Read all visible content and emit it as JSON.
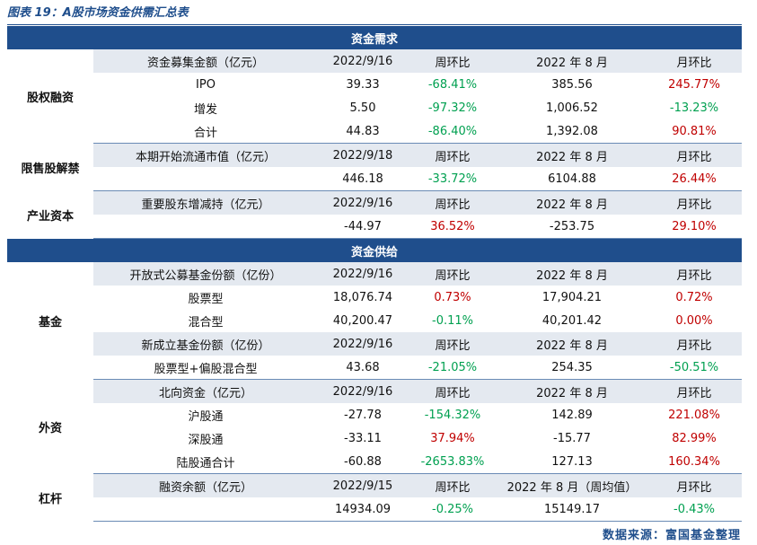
{
  "caption": "图表 19：A股市场资金供需汇总表",
  "source": "数据来源：富国基金整理",
  "colors": {
    "header_blue": "#1f4e8c",
    "subheader_gray": "#e4e9f0",
    "up_red": "#c00000",
    "down_green": "#00a050"
  },
  "sections": [
    {
      "title": "资金需求",
      "groups": [
        {
          "name": "股权融资",
          "rows": [
            {
              "type": "header",
              "cells": [
                "资金募集金额（亿元）",
                "2022/9/16",
                "周环比",
                "2022 年 8 月",
                "月环比"
              ]
            },
            {
              "type": "data",
              "cells": [
                "IPO",
                "39.33",
                "-68.41%",
                "385.56",
                "245.77%"
              ],
              "dir": [
                "",
                "",
                "neg",
                "",
                "pos"
              ]
            },
            {
              "type": "data",
              "cells": [
                "增发",
                "5.50",
                "-97.32%",
                "1,006.52",
                "-13.23%"
              ],
              "dir": [
                "",
                "",
                "neg",
                "",
                "neg"
              ]
            },
            {
              "type": "data",
              "cells": [
                "合计",
                "44.83",
                "-86.40%",
                "1,392.08",
                "90.81%"
              ],
              "dir": [
                "",
                "",
                "neg",
                "",
                "pos"
              ]
            }
          ]
        },
        {
          "name": "限售股解禁",
          "rows": [
            {
              "type": "header",
              "cells": [
                "本期开始流通市值（亿元）",
                "2022/9/18",
                "周环比",
                "2022 年 8 月",
                "月环比"
              ]
            },
            {
              "type": "data",
              "cells": [
                "",
                "446.18",
                "-33.72%",
                "6104.88",
                "26.44%"
              ],
              "dir": [
                "",
                "",
                "neg",
                "",
                "pos"
              ]
            }
          ]
        },
        {
          "name": "产业资本",
          "rows": [
            {
              "type": "header",
              "cells": [
                "重要股东增减持（亿元）",
                "2022/9/16",
                "周环比",
                "2022 年 8 月",
                "月环比"
              ]
            },
            {
              "type": "data",
              "cells": [
                "",
                "-44.97",
                "36.52%",
                "-253.75",
                "29.10%"
              ],
              "dir": [
                "",
                "",
                "pos",
                "",
                "pos"
              ]
            }
          ]
        }
      ]
    },
    {
      "title": "资金供给",
      "groups": [
        {
          "name": "基金",
          "rows": [
            {
              "type": "header",
              "cells": [
                "开放式公募基金份额（亿份）",
                "2022/9/16",
                "周环比",
                "2022 年 8 月",
                "月环比"
              ]
            },
            {
              "type": "data",
              "cells": [
                "股票型",
                "18,076.74",
                "0.73%",
                "17,904.21",
                "0.72%"
              ],
              "dir": [
                "",
                "",
                "pos",
                "",
                "pos"
              ]
            },
            {
              "type": "data",
              "cells": [
                "混合型",
                "40,200.47",
                "-0.11%",
                "40,201.42",
                "0.00%"
              ],
              "dir": [
                "",
                "",
                "neg",
                "",
                "pos"
              ]
            },
            {
              "type": "header",
              "cells": [
                "新成立基金份额（亿份）",
                "2022/9/16",
                "周环比",
                "2022 年 8 月",
                "月环比"
              ]
            },
            {
              "type": "data",
              "cells": [
                "股票型+偏股混合型",
                "43.68",
                "-21.05%",
                "254.35",
                "-50.51%"
              ],
              "dir": [
                "",
                "",
                "neg",
                "",
                "neg"
              ]
            }
          ]
        },
        {
          "name": "外资",
          "rows": [
            {
              "type": "header",
              "cells": [
                "北向资金（亿元）",
                "2022/9/16",
                "周环比",
                "2022 年 8 月",
                "月环比"
              ]
            },
            {
              "type": "data",
              "cells": [
                "沪股通",
                "-27.78",
                "-154.32%",
                "142.89",
                "221.08%"
              ],
              "dir": [
                "",
                "",
                "neg",
                "",
                "pos"
              ]
            },
            {
              "type": "data",
              "cells": [
                "深股通",
                "-33.11",
                "37.94%",
                "-15.77",
                "82.99%"
              ],
              "dir": [
                "",
                "",
                "pos",
                "",
                "pos"
              ]
            },
            {
              "type": "data",
              "cells": [
                "陆股通合计",
                "-60.88",
                "-2653.83%",
                "127.13",
                "160.34%"
              ],
              "dir": [
                "",
                "",
                "neg",
                "",
                "pos"
              ]
            }
          ]
        },
        {
          "name": "杠杆",
          "rows": [
            {
              "type": "header",
              "cells": [
                "融资余额（亿元）",
                "2022/9/15",
                "周环比",
                "2022 年 8 月（周均值）",
                "月环比"
              ]
            },
            {
              "type": "data",
              "cells": [
                "",
                "14934.09",
                "-0.25%",
                "15149.17",
                "-0.43%"
              ],
              "dir": [
                "",
                "",
                "neg",
                "",
                "neg"
              ]
            }
          ]
        }
      ]
    }
  ]
}
